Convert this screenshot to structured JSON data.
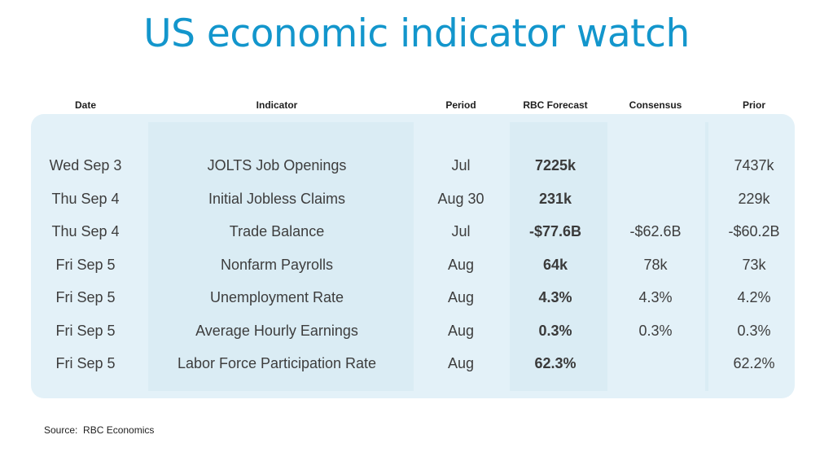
{
  "title": "US economic indicator watch",
  "columns": {
    "date": "Date",
    "indicator": "Indicator",
    "period": "Period",
    "forecast": "RBC Forecast",
    "consensus": "Consensus",
    "prior": "Prior"
  },
  "rows": [
    {
      "date": "Wed Sep 3",
      "indicator": "JOLTS Job Openings",
      "period": "Jul",
      "forecast": "7225k",
      "consensus": "",
      "prior": "7437k"
    },
    {
      "date": "Thu Sep 4",
      "indicator": "Initial Jobless Claims",
      "period": "Aug 30",
      "forecast": "231k",
      "consensus": "",
      "prior": "229k"
    },
    {
      "date": "Thu Sep 4",
      "indicator": "Trade Balance",
      "period": "Jul",
      "forecast": "-$77.6B",
      "consensus": "-$62.6B",
      "prior": "-$60.2B"
    },
    {
      "date": "Fri Sep 5",
      "indicator": "Nonfarm Payrolls",
      "period": "Aug",
      "forecast": "64k",
      "consensus": "78k",
      "prior": "73k"
    },
    {
      "date": "Fri Sep 5",
      "indicator": "Unemployment Rate",
      "period": "Aug",
      "forecast": "4.3%",
      "consensus": "4.3%",
      "prior": "4.2%"
    },
    {
      "date": "Fri Sep 5",
      "indicator": "Average Hourly Earnings",
      "period": "Aug",
      "forecast": "0.3%",
      "consensus": "0.3%",
      "prior": "0.3%"
    },
    {
      "date": "Fri Sep 5",
      "indicator": "Labor Force Participation Rate",
      "period": "Aug",
      "forecast": "62.3%",
      "consensus": "",
      "prior": "62.2%"
    }
  ],
  "source": "Source:  RBC Economics",
  "colors": {
    "title": "#1396cc",
    "panel": "#e3f1f8"
  }
}
